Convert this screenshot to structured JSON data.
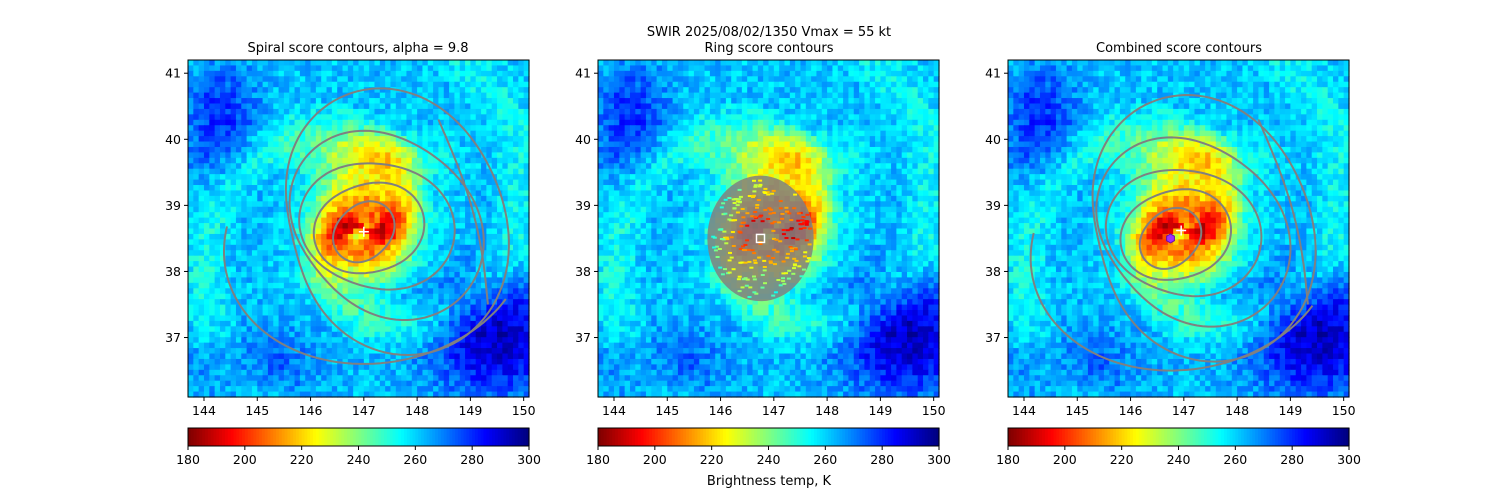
{
  "suptitle": {
    "line1": "SWIR  2025/08/02/1350    Vmax = 55 kt"
  },
  "colorbar_label": "Brightness temp, K",
  "colorbar_ticks": [
    "180",
    "200",
    "220",
    "240",
    "260",
    "280",
    "300"
  ],
  "colormap": [
    "#800000",
    "#ff0000",
    "#ff8000",
    "#ffff00",
    "#80ff80",
    "#00ffff",
    "#0080ff",
    "#0000ff",
    "#000080"
  ],
  "contour_color": "#808080",
  "chart_data": [
    {
      "type": "heatmap",
      "title": "Spiral score contours, alpha =  9.8",
      "xlabel": "",
      "ylabel": "",
      "xlim": [
        143.7,
        150.1
      ],
      "ylim": [
        36.1,
        41.2
      ],
      "xticks": [
        "144",
        "145",
        "146",
        "147",
        "148",
        "149",
        "150"
      ],
      "yticks": [
        "37",
        "38",
        "39",
        "40",
        "41"
      ],
      "center": {
        "lon": 147.0,
        "lat": 38.6,
        "marker": "plus",
        "color": "#ffffff"
      },
      "contours": "spiral",
      "clim": [
        180,
        300
      ]
    },
    {
      "type": "heatmap",
      "title": "Ring score contours",
      "xlabel": "",
      "ylabel": "",
      "xlim": [
        143.7,
        150.1
      ],
      "ylim": [
        36.1,
        41.2
      ],
      "xticks": [
        "144",
        "145",
        "146",
        "147",
        "148",
        "149",
        "150"
      ],
      "yticks": [
        "37",
        "38",
        "39",
        "40",
        "41"
      ],
      "center": {
        "lon": 146.75,
        "lat": 38.5,
        "marker": "square",
        "color": "#ffffff"
      },
      "contours": "ring",
      "ring_radius_deg": 0.95,
      "clim": [
        180,
        300
      ]
    },
    {
      "type": "heatmap",
      "title": "Combined score contours",
      "xlabel": "",
      "ylabel": "",
      "xlim": [
        143.7,
        150.1
      ],
      "ylim": [
        36.1,
        41.2
      ],
      "xticks": [
        "144",
        "145",
        "146",
        "147",
        "148",
        "149",
        "150"
      ],
      "yticks": [
        "37",
        "38",
        "39",
        "40",
        "41"
      ],
      "center": {
        "lon": 146.75,
        "lat": 38.5,
        "marker": "hexagon",
        "color": "#9b30ff"
      },
      "center2": {
        "lon": 146.95,
        "lat": 38.62,
        "marker": "plus",
        "color": "#ffffff"
      },
      "contours": "spiral",
      "clim": [
        180,
        300
      ]
    }
  ]
}
